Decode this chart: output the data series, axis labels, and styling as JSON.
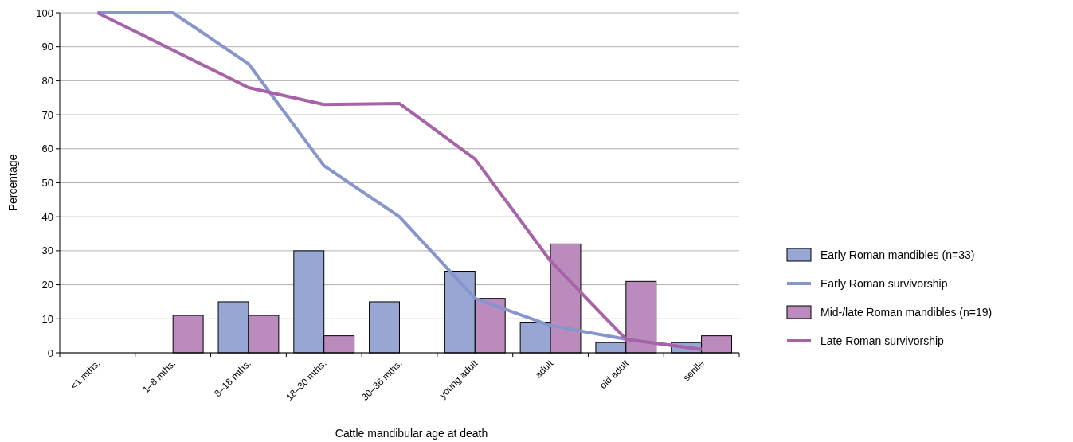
{
  "chart_data": {
    "type": "bar",
    "xlabel": "Cattle mandibular age at death",
    "ylabel": "Percentage",
    "categories": [
      "<1 mths.",
      "1–8 mths.",
      "8–18 mths.",
      "18–30 mths.",
      "30–36 mths.",
      "young adult",
      "adult",
      "old adult",
      "senile"
    ],
    "series": [
      {
        "name": "Early Roman mandibles (n=33)",
        "color": "#98a6d4",
        "values": [
          null,
          null,
          15,
          30,
          15,
          24,
          9,
          3,
          3
        ]
      },
      {
        "name": "Early Roman survivorship",
        "type": "line",
        "color": "#8795cd",
        "values": [
          100,
          100,
          85,
          55,
          40,
          16,
          8,
          4,
          1
        ]
      },
      {
        "name": "Mid-/late Roman mandibles (n=19)",
        "color": "#bc8bbe",
        "values": [
          null,
          11,
          11,
          5,
          null,
          16,
          32,
          21,
          5
        ]
      },
      {
        "name": "Late Roman survivorship",
        "type": "line",
        "color": "#a862a8",
        "values": [
          100,
          89,
          78,
          73,
          73.3,
          57,
          27,
          4,
          1
        ]
      }
    ],
    "ylim": [
      0,
      100
    ],
    "yticks": [
      0,
      10,
      20,
      30,
      40,
      50,
      60,
      70,
      80,
      90,
      100
    ],
    "grid": "y",
    "legend": "right",
    "marker": "none",
    "line_style": "solid"
  }
}
